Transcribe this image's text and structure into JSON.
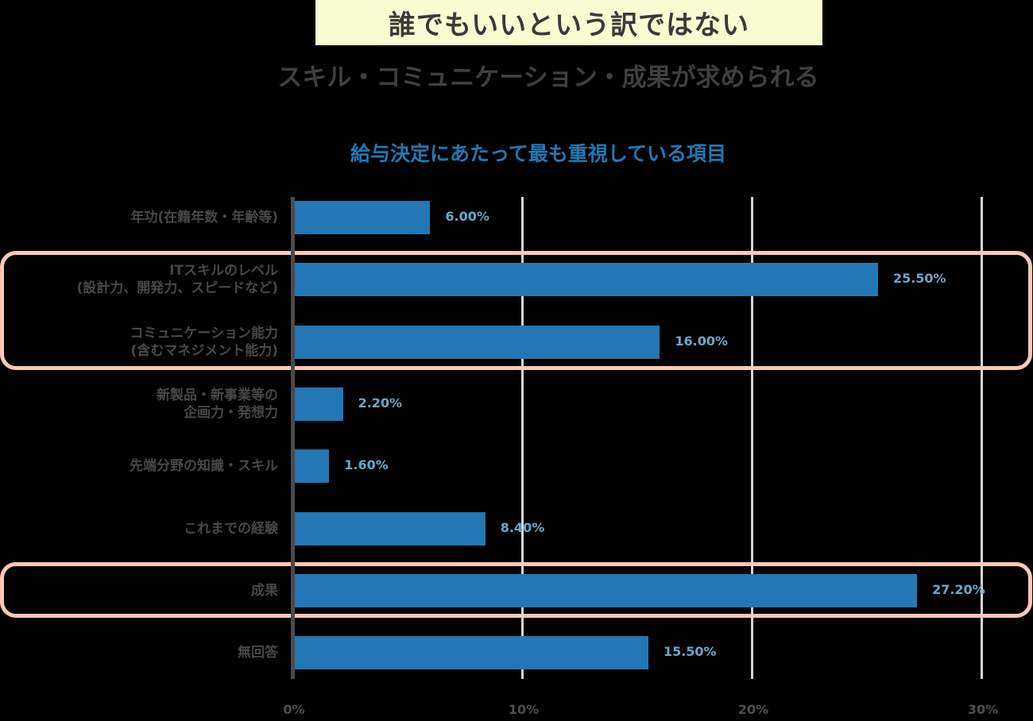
{
  "header": {
    "headline": "誰でもいいという訳ではない",
    "subheadline": "スキル・コミュニケーション・成果が求められる"
  },
  "chart_data": {
    "type": "bar",
    "orientation": "horizontal",
    "title": "給与決定にあたって最も重視している項目",
    "categories": [
      "年功(在籍年数・年齢等)",
      "ITスキルのレベル\n(設計力、開発力、スピードなど)",
      "コミュニケーション能力\n(含むマネジメント能力)",
      "新製品・新事業等の\n企画力・発想力",
      "先端分野の知識・スキル",
      "これまでの経験",
      "成果",
      "無回答"
    ],
    "values": [
      6.0,
      25.5,
      16.0,
      2.2,
      1.6,
      8.4,
      27.2,
      15.5
    ],
    "value_labels": [
      "6.00%",
      "25.50%",
      "16.00%",
      "2.20%",
      "1.60%",
      "8.40%",
      "27.20%",
      "15.50%"
    ],
    "xlabel": "",
    "ylabel": "",
    "xlim": [
      0,
      30
    ],
    "xticks": [
      "0%",
      "10%",
      "20%",
      "30%"
    ],
    "grid": true,
    "highlighted_groups": [
      [
        "ITスキルのレベル",
        "コミュニケーション能力"
      ],
      [
        "成果"
      ]
    ],
    "colors": {
      "bar": "#2277b4",
      "value_label": "#6ba7c6",
      "highlight": "#fdc8b4",
      "headline_bg": "#fafdd2"
    }
  }
}
